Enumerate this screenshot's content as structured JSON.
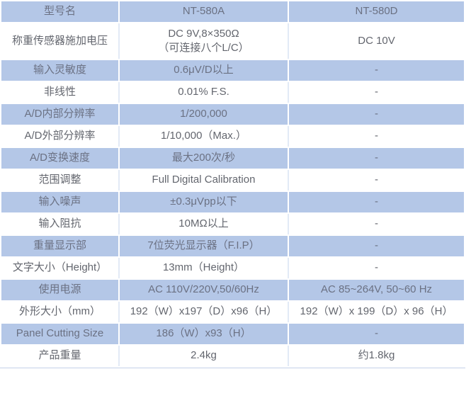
{
  "colors": {
    "row_shade_blue": "#b4c7e7",
    "text_gray": "#686d78",
    "bottom_border": "#c3d1e8",
    "background": "#ffffff"
  },
  "table": {
    "header": {
      "label": "型号名",
      "model_a": "NT-580A",
      "model_d": "NT-580D"
    },
    "rows": [
      {
        "label": "型号名",
        "a": "NT-580A",
        "d": "NT-580D"
      },
      {
        "label": "称重传感器施加电压",
        "a": "DC 9V,8×350Ω\n（可连接八个L/C）",
        "d": "DC 10V"
      },
      {
        "label": "输入灵敏度",
        "a": "0.6μV/D以上",
        "d": "-"
      },
      {
        "label": "非线性",
        "a": "0.01% F.S.",
        "d": "-"
      },
      {
        "label": "A/D内部分辨率",
        "a": "1/200,000",
        "d": "-"
      },
      {
        "label": "A/D外部分辨率",
        "a": "1/10,000（Max.）",
        "d": "-"
      },
      {
        "label": "A/D变换速度",
        "a": "最大200次/秒",
        "d": "-"
      },
      {
        "label": "范围调整",
        "a": "Full Digital Calibration",
        "d": "-"
      },
      {
        "label": "输入噪声",
        "a": "±0.3μVpp以下",
        "d": "-"
      },
      {
        "label": "输入阻抗",
        "a": "10MΩ以上",
        "d": "-"
      },
      {
        "label": "重量显示部",
        "a": "7位荧光显示器（F.I.P）",
        "d": "-"
      },
      {
        "label": "文字大小（Height）",
        "a": "13mm（Height）",
        "d": "-"
      },
      {
        "label": "使用电源",
        "a": "AC 110V/220V,50/60Hz",
        "d": "AC 85~264V, 50~60 Hz"
      },
      {
        "label": "外形大小（mm）",
        "a": "192（W）x197（D）x96（H）",
        "d": "192（W）x 199（D）x 96（H）"
      },
      {
        "label": "Panel Cutting Size",
        "a": "186（W）x93（H）",
        "d": "-"
      },
      {
        "label": "产品重量",
        "a": "2.4kg",
        "d": "约1.8kg"
      }
    ]
  },
  "chart_data": {
    "type": "table",
    "title": "",
    "columns": [
      "型号名",
      "NT-580A",
      "NT-580D"
    ],
    "rows": [
      [
        "称重传感器施加电压",
        "DC 9V,8×350Ω（可连接八个L/C）",
        "DC 10V"
      ],
      [
        "输入灵敏度",
        "0.6μV/D以上",
        "-"
      ],
      [
        "非线性",
        "0.01% F.S.",
        "-"
      ],
      [
        "A/D内部分辨率",
        "1/200,000",
        "-"
      ],
      [
        "A/D外部分辨率",
        "1/10,000（Max.）",
        "-"
      ],
      [
        "A/D变换速度",
        "最大200次/秒",
        "-"
      ],
      [
        "范围调整",
        "Full Digital Calibration",
        "-"
      ],
      [
        "输入噪声",
        "±0.3μVpp以下",
        "-"
      ],
      [
        "输入阻抗",
        "10MΩ以上",
        "-"
      ],
      [
        "重量显示部",
        "7位荧光显示器（F.I.P）",
        "-"
      ],
      [
        "文字大小（Height）",
        "13mm（Height）",
        "-"
      ],
      [
        "使用电源",
        "AC 110V/220V,50/60Hz",
        "AC 85~264V, 50~60 Hz"
      ],
      [
        "外形大小（mm）",
        "192（W）x197（D）x96（H）",
        "192（W）x 199（D）x 96（H）"
      ],
      [
        "Panel Cutting Size",
        "186（W）x93（H）",
        "-"
      ],
      [
        "产品重量",
        "2.4kg",
        "约1.8kg"
      ]
    ]
  }
}
